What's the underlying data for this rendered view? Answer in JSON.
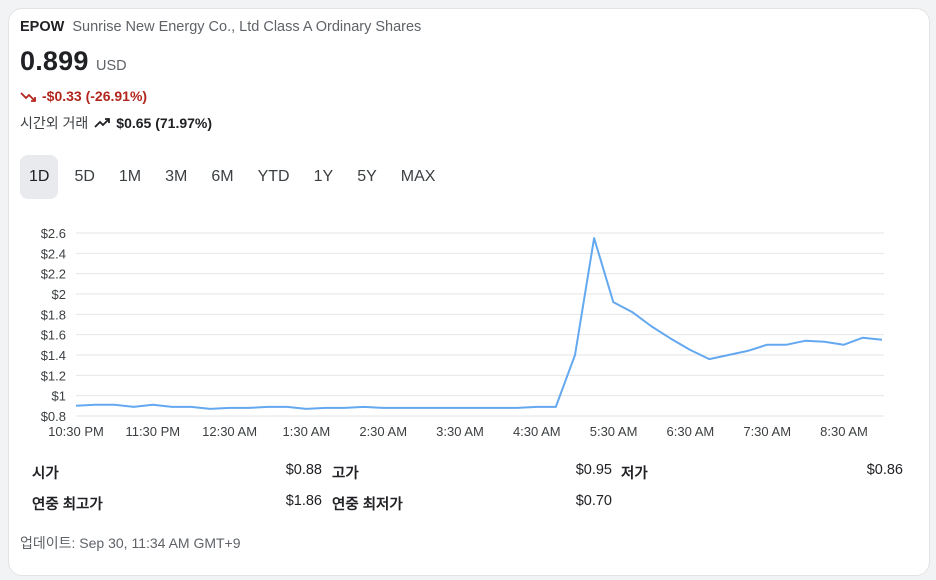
{
  "header": {
    "ticker": "EPOW",
    "company": "Sunrise New Energy Co., Ltd Class A Ordinary Shares"
  },
  "quote": {
    "price": "0.899",
    "currency": "USD",
    "change": "-$0.33 (-26.91%)",
    "after_hours_label": "시간외 거래",
    "after_hours_change": "$0.65 (71.97%)"
  },
  "colors": {
    "down": "#b3261e",
    "line": "#64a8f0",
    "grid": "#e6e6e6"
  },
  "icons": {
    "down": "trending-down-icon",
    "up": "trending-up-icon"
  },
  "ranges": [
    "1D",
    "5D",
    "1M",
    "3M",
    "6M",
    "YTD",
    "1Y",
    "5Y",
    "MAX"
  ],
  "active_range": "1D",
  "chart_data": {
    "type": "line",
    "title": "",
    "xlabel": "",
    "ylabel": "",
    "ylim": [
      0.8,
      2.6
    ],
    "y_ticks": [
      "$2.6",
      "$2.4",
      "$2.2",
      "$2",
      "$1.8",
      "$1.6",
      "$1.4",
      "$1.2",
      "$1",
      "$0.8"
    ],
    "x_ticks": [
      "10:30 PM",
      "11:30 PM",
      "12:30 AM",
      "1:30 AM",
      "2:30 AM",
      "3:30 AM",
      "4:30 AM",
      "5:30 AM",
      "6:30 AM",
      "7:30 AM",
      "8:30 AM"
    ],
    "grid": true,
    "series": [
      {
        "values": [
          0.9,
          0.91,
          0.91,
          0.89,
          0.91,
          0.89,
          0.89,
          0.87,
          0.88,
          0.88,
          0.89,
          0.89,
          0.87,
          0.88,
          0.88,
          0.89,
          0.88,
          0.88,
          0.88,
          0.88,
          0.88,
          0.88,
          0.88,
          0.88,
          0.89,
          0.89,
          1.4,
          2.55,
          1.92,
          1.82,
          1.68,
          1.56,
          1.45,
          1.36,
          1.4,
          1.44,
          1.5,
          1.5,
          1.54,
          1.53,
          1.5,
          1.57,
          1.55
        ]
      }
    ]
  },
  "stats": {
    "open_label": "시가",
    "open_value": "$0.88",
    "high_label": "고가",
    "high_value": "$0.95",
    "low_label": "저가",
    "low_value": "$0.86",
    "year_high_label": "연중 최고가",
    "year_high_value": "$1.86",
    "year_low_label": "연중 최저가",
    "year_low_value": "$0.70"
  },
  "updated": "업데이트: Sep 30, 11:34 AM GMT+9"
}
